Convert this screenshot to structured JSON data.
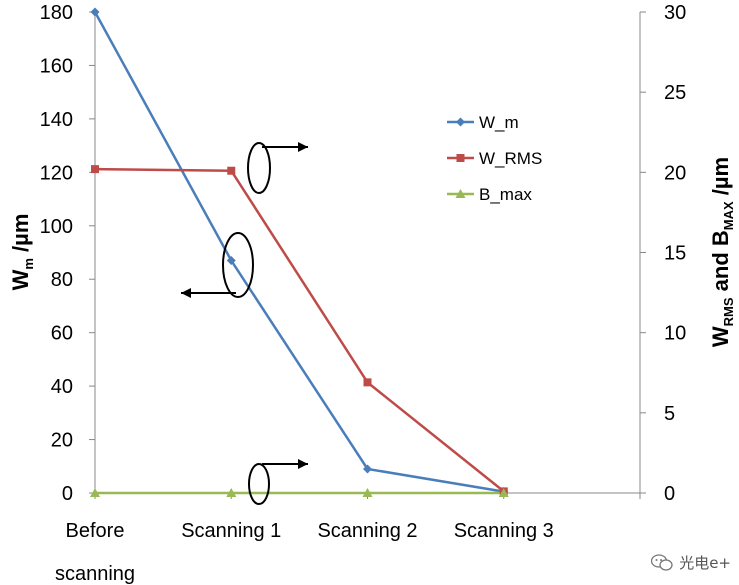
{
  "chart_data": {
    "type": "line",
    "categories": [
      "Before scanning",
      "Scanning 1",
      "Scanning 2",
      "Scanning 3"
    ],
    "category_lines": [
      [
        "Before",
        "scanning"
      ],
      [
        "Scanning 1"
      ],
      [
        "Scanning 2"
      ],
      [
        "Scanning 3"
      ]
    ],
    "series": [
      {
        "name": "W_m",
        "axis": "left",
        "color": "#4a7ebb",
        "marker": "diamond",
        "values": [
          180,
          87,
          9,
          0.5
        ]
      },
      {
        "name": "W_RMS",
        "axis": "right",
        "color": "#be4b48",
        "marker": "square",
        "values": [
          20.2,
          20.1,
          6.9,
          0.1
        ]
      },
      {
        "name": "B_max",
        "axis": "right",
        "color": "#98b954",
        "marker": "triangle",
        "values": [
          0,
          0,
          0,
          0
        ]
      }
    ],
    "left_axis": {
      "min": 0,
      "max": 180,
      "step": 20,
      "label_main": "W",
      "label_sub": "m",
      "label_rest": " /µm"
    },
    "right_axis": {
      "min": 0,
      "max": 30,
      "step": 5,
      "label_parts": [
        [
          "W",
          ""
        ],
        [
          "RMS",
          "sub"
        ],
        [
          " and B",
          ""
        ],
        [
          "MAX",
          "sub"
        ],
        [
          " /µm",
          ""
        ]
      ]
    },
    "legend": {
      "position": "right-inside"
    },
    "grid": false
  },
  "watermark": {
    "text": "光电e+"
  }
}
